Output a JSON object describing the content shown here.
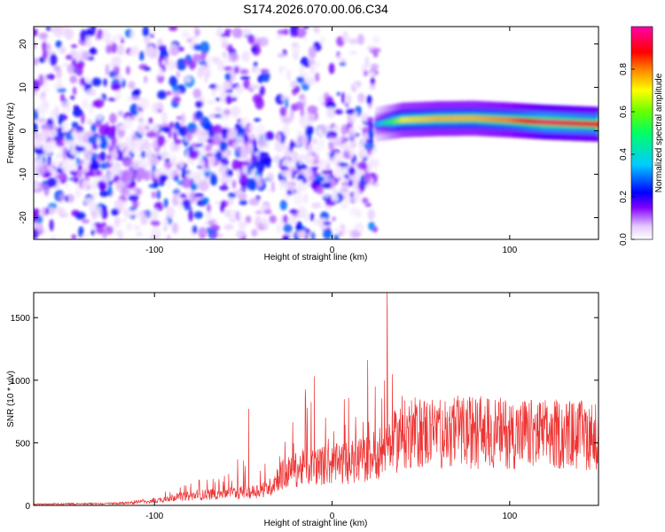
{
  "title": "S174.2026.070.00.06.C34",
  "chart_data": [
    {
      "type": "heatmap",
      "title": "S174.2026.070.00.06.C34",
      "xlabel": "Height of straight line (km)",
      "ylabel": "Frequency (Hz)",
      "xlim": [
        -168,
        150
      ],
      "ylim": [
        -25,
        24
      ],
      "xticks": [
        -100,
        0,
        100
      ],
      "xtick_labels": [
        "-100",
        "0",
        "100"
      ],
      "yticks": [
        -20,
        -10,
        0,
        10,
        20
      ],
      "ytick_labels": [
        "-20",
        "-10",
        "0",
        "10",
        "20"
      ],
      "colorbar": {
        "label": "Normalized spectral amplitude",
        "range": [
          0.0,
          1.0
        ],
        "ticks": [
          0.0,
          0.2,
          0.4,
          0.6,
          0.8
        ],
        "tick_labels": [
          "0.0",
          "0.2",
          "0.4",
          "0.6",
          "0.8"
        ],
        "colormap": "rainbow (white-purple-blue-cyan-green-yellow-red-magenta)"
      },
      "ridge": {
        "description": "dominant frequency band",
        "x": [
          25,
          40,
          60,
          80,
          100,
          120,
          150
        ],
        "frequency": [
          1.5,
          2.5,
          2.8,
          2.9,
          2.5,
          2.0,
          1.5
        ],
        "amplitude": [
          0.3,
          0.7,
          0.75,
          0.75,
          0.8,
          0.95,
          0.9
        ]
      },
      "scattered_energy": {
        "x_range": [
          -168,
          25
        ],
        "frequency_range": [
          -25,
          24
        ],
        "amplitude_range": [
          0.02,
          0.3
        ],
        "gap": [
          -35,
          -30
        ]
      }
    },
    {
      "type": "line",
      "xlabel": "Height of straight line (km)",
      "ylabel": "SNR (10 * v/v)",
      "xlim": [
        -168,
        150
      ],
      "ylim": [
        0,
        1700
      ],
      "xticks": [
        -100,
        0,
        100
      ],
      "xtick_labels": [
        "-100",
        "0",
        "100"
      ],
      "yticks": [
        0,
        500,
        1000,
        1500
      ],
      "ytick_labels": [
        "0",
        "500",
        "1000",
        "1500"
      ],
      "color": "#ee3333",
      "envelope": {
        "x": [
          -168,
          -120,
          -100,
          -90,
          -75,
          -60,
          -45,
          -35,
          -30,
          -20,
          -10,
          0,
          10,
          20,
          25,
          30,
          35,
          40,
          50,
          75,
          100,
          125,
          150
        ],
        "median": [
          10,
          15,
          40,
          70,
          90,
          110,
          120,
          160,
          260,
          320,
          350,
          360,
          380,
          420,
          460,
          500,
          560,
          620,
          650,
          650,
          640,
          630,
          620
        ],
        "peak": [
          25,
          30,
          80,
          140,
          210,
          240,
          580,
          250,
          600,
          900,
          1000,
          650,
          1000,
          1150,
          1050,
          1700,
          1200,
          900,
          780,
          730,
          720,
          740,
          700
        ]
      },
      "notable_peaks": [
        {
          "x": -47,
          "y": 770
        },
        {
          "x": -10,
          "y": 1030
        },
        {
          "x": 20,
          "y": 1160
        },
        {
          "x": 31,
          "y": 1700
        }
      ]
    }
  ]
}
